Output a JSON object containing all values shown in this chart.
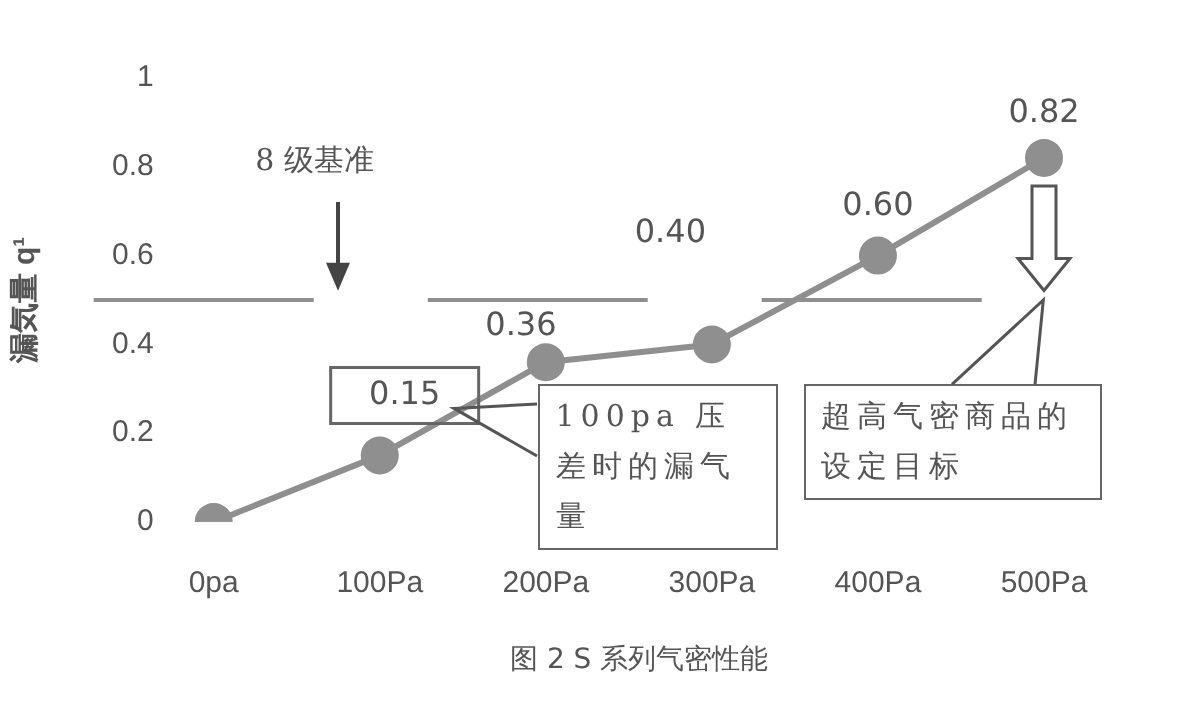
{
  "chart_data": {
    "type": "line",
    "ylabel": "漏気量 q¹",
    "categories": [
      "0pa",
      "100Pa",
      "200Pa",
      "300Pa",
      "400Pa",
      "500Pa"
    ],
    "series": [
      {
        "color": "#8f8f8f",
        "values": [
          0,
          0.15,
          0.36,
          0.4,
          0.6,
          0.82
        ],
        "value_labels": [
          null,
          "0.15",
          "0.36",
          "0.40",
          "0.60",
          "0.82"
        ]
      }
    ],
    "ylim": [
      0,
      1
    ],
    "yticks": [
      0,
      0.2,
      0.4,
      0.6,
      0.8,
      1
    ],
    "marker": "circle",
    "line_style": "solid",
    "grid": false,
    "legend": false,
    "ref_lines": [
      {
        "axis": "y",
        "value": 0.5,
        "color": "#8f8f8f",
        "line_style": "dashed"
      }
    ],
    "annotations": [
      "8 级基准",
      "100pa 压差时的漏气量",
      "超高气密商品的设定目标",
      "图 2 S 系列气密性能"
    ]
  }
}
